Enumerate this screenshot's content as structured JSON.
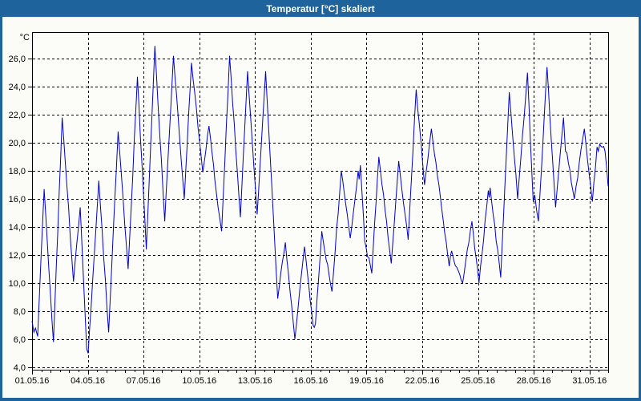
{
  "window": {
    "title": "Temperatur [°C] skaliert",
    "titlebar_color": "#1e639b",
    "frame_color": "#1e639b",
    "title_text_color": "#ffffff",
    "client_background": "#fbfcf6"
  },
  "chart_data": {
    "type": "line",
    "title": "Temperatur [°C] skaliert",
    "grid": {
      "style": "dashed",
      "color": "#000000"
    },
    "plot_background": "#fcfdf8",
    "axis_color": "#000000",
    "x_axis": {
      "range_days": [
        0,
        31
      ],
      "start_date": "01.05.16",
      "end_date": "31.05.16",
      "major_tick_days": [
        0,
        3,
        6,
        9,
        12,
        15,
        18,
        21,
        24,
        27,
        30
      ],
      "major_tick_labels": [
        "01.05.16",
        "04.05.16",
        "07.05.16",
        "10.05.16",
        "13.05.16",
        "16.05.16",
        "19.05.16",
        "22.05.16",
        "25.05.16",
        "28.05.16",
        "31.05.16"
      ],
      "minor_tick_step_days": 0.5
    },
    "y_axis": {
      "unit": "°C",
      "range": [
        3.83,
        27.89
      ],
      "major_tick_values": [
        26,
        24,
        22,
        20,
        18,
        16,
        14,
        12,
        10,
        8,
        6,
        4
      ],
      "major_tick_labels": [
        "26,0",
        "24,0",
        "22,0",
        "20,0",
        "18,0",
        "16,0",
        "14,0",
        "12,0",
        "10,0",
        "8,0",
        "6,0",
        "4,0"
      ]
    },
    "series": [
      {
        "name": "Temperatur [°C]",
        "color": "#0000cc",
        "points_day_temp": [
          [
            0.0,
            7.3
          ],
          [
            0.1,
            6.5
          ],
          [
            0.18,
            6.8
          ],
          [
            0.3,
            6.2
          ],
          [
            0.65,
            16.7
          ],
          [
            1.15,
            5.8
          ],
          [
            1.62,
            21.8
          ],
          [
            2.23,
            10.1
          ],
          [
            2.59,
            15.4
          ],
          [
            2.94,
            5.3
          ],
          [
            3.02,
            5.0
          ],
          [
            3.59,
            17.3
          ],
          [
            4.12,
            6.5
          ],
          [
            4.63,
            20.8
          ],
          [
            5.17,
            11.0
          ],
          [
            5.67,
            24.7
          ],
          [
            6.15,
            12.4
          ],
          [
            6.61,
            26.9
          ],
          [
            7.14,
            14.4
          ],
          [
            7.61,
            26.2
          ],
          [
            8.19,
            16.0
          ],
          [
            8.58,
            25.7
          ],
          [
            9.19,
            17.9
          ],
          [
            9.52,
            21.2
          ],
          [
            9.92,
            16.4
          ],
          [
            10.2,
            13.7
          ],
          [
            10.63,
            26.2
          ],
          [
            11.21,
            14.7
          ],
          [
            11.6,
            25.1
          ],
          [
            12.11,
            14.9
          ],
          [
            12.57,
            25.1
          ],
          [
            13.22,
            8.9
          ],
          [
            13.63,
            12.9
          ],
          [
            14.14,
            6.0
          ],
          [
            14.66,
            12.6
          ],
          [
            15.12,
            7.0
          ],
          [
            15.25,
            7.1
          ],
          [
            15.59,
            13.7
          ],
          [
            16.14,
            9.4
          ],
          [
            16.64,
            18.0
          ],
          [
            17.12,
            13.2
          ],
          [
            17.55,
            18.0
          ],
          [
            17.6,
            17.4
          ],
          [
            17.67,
            18.4
          ],
          [
            17.9,
            13.0
          ],
          [
            18.28,
            10.7
          ],
          [
            18.66,
            19.0
          ],
          [
            19.33,
            11.4
          ],
          [
            19.73,
            18.7
          ],
          [
            20.24,
            13.1
          ],
          [
            20.67,
            23.8
          ],
          [
            21.12,
            17.0
          ],
          [
            21.49,
            21.0
          ],
          [
            22.13,
            14.4
          ],
          [
            22.45,
            11.2
          ],
          [
            22.58,
            12.3
          ],
          [
            22.7,
            11.6
          ],
          [
            23.17,
            10.0
          ],
          [
            23.67,
            14.4
          ],
          [
            24.05,
            10.0
          ],
          [
            24.55,
            16.6
          ],
          [
            24.6,
            16.1
          ],
          [
            24.65,
            16.8
          ],
          [
            25.22,
            10.4
          ],
          [
            25.68,
            23.6
          ],
          [
            26.13,
            16.0
          ],
          [
            26.66,
            25.0
          ],
          [
            26.97,
            15.8
          ],
          [
            27.05,
            16.3
          ],
          [
            27.25,
            14.4
          ],
          [
            27.71,
            25.4
          ],
          [
            28.17,
            15.4
          ],
          [
            28.6,
            21.8
          ],
          [
            28.7,
            19.4
          ],
          [
            28.78,
            19.3
          ],
          [
            29.18,
            16.0
          ],
          [
            29.72,
            21.0
          ],
          [
            30.15,
            15.8
          ],
          [
            30.4,
            19.7
          ],
          [
            30.47,
            19.4
          ],
          [
            30.55,
            19.9
          ],
          [
            30.7,
            19.7
          ],
          [
            30.83,
            19.4
          ],
          [
            31.0,
            16.9
          ]
        ]
      }
    ]
  }
}
